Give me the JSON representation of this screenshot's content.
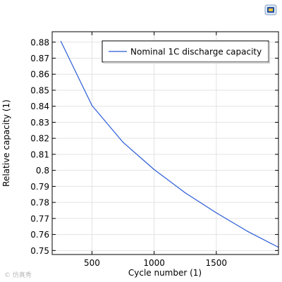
{
  "watermark_text": "© 仿真秀",
  "chart_data": {
    "type": "line",
    "title": "",
    "xlabel": "Cycle number (1)",
    "ylabel": "Relative capacity (1)",
    "xlim": [
      180,
      2000
    ],
    "ylim": [
      0.7475,
      0.8865
    ],
    "xticks": [
      500,
      1000,
      1500
    ],
    "yticks": [
      0.75,
      0.76,
      0.77,
      0.78,
      0.79,
      0.8,
      0.81,
      0.82,
      0.83,
      0.84,
      0.85,
      0.86,
      0.87,
      0.88
    ],
    "grid": true,
    "legend_position": "top-right",
    "series": [
      {
        "name": "Nominal 1C discharge capacity",
        "color": "#2a5bd7",
        "x": [
          250,
          500,
          750,
          1000,
          1250,
          1500,
          1750,
          2000
        ],
        "y": [
          0.8805,
          0.8405,
          0.8175,
          0.8005,
          0.786,
          0.7735,
          0.762,
          0.752
        ]
      }
    ]
  }
}
